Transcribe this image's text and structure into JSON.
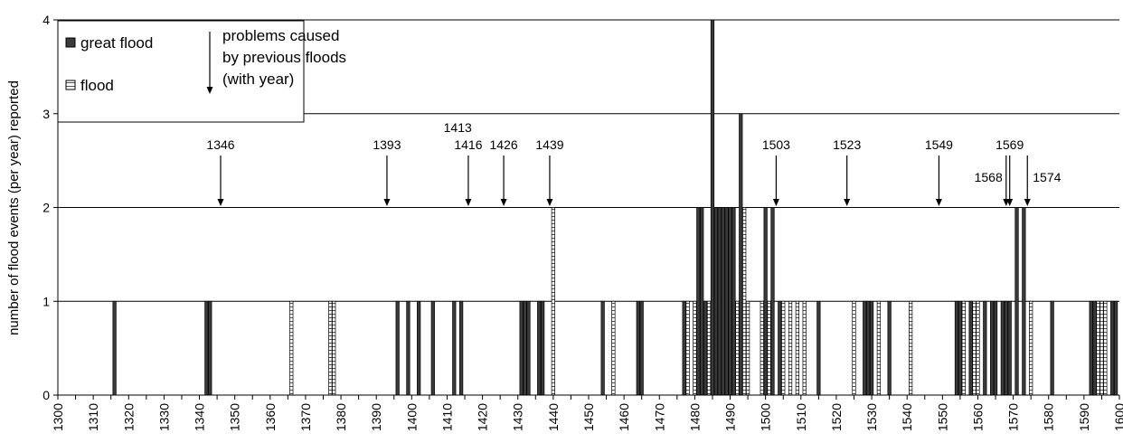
{
  "chart_data": {
    "type": "bar",
    "title": "",
    "xlabel": "",
    "ylabel": "number of flood events (per year) reported",
    "xlim": [
      1300,
      1600
    ],
    "ylim": [
      0,
      4
    ],
    "x_ticks": [
      1300,
      1310,
      1320,
      1330,
      1340,
      1350,
      1360,
      1370,
      1380,
      1390,
      1400,
      1410,
      1420,
      1430,
      1440,
      1450,
      1460,
      1470,
      1480,
      1490,
      1500,
      1510,
      1520,
      1530,
      1540,
      1550,
      1560,
      1570,
      1580,
      1590,
      1600
    ],
    "y_ticks": [
      0,
      1,
      2,
      3,
      4
    ],
    "grid": "horizontal",
    "legend_position": "top-left",
    "colors": {
      "great_flood": "#3a3a3a",
      "flood_fill": "#ffffff",
      "flood_hatch": "#555555"
    },
    "legend": {
      "great_flood": "great flood",
      "flood": "flood",
      "arrow_line1": "problems caused",
      "arrow_line2": "by previous floods",
      "arrow_line3": "(with year)"
    },
    "series": [
      {
        "name": "great flood",
        "points": [
          {
            "x": 1316,
            "y": 1
          },
          {
            "x": 1342,
            "y": 1
          },
          {
            "x": 1343,
            "y": 1
          },
          {
            "x": 1396,
            "y": 1
          },
          {
            "x": 1399,
            "y": 1
          },
          {
            "x": 1402,
            "y": 1
          },
          {
            "x": 1406,
            "y": 1
          },
          {
            "x": 1412,
            "y": 1
          },
          {
            "x": 1414,
            "y": 1
          },
          {
            "x": 1431,
            "y": 1
          },
          {
            "x": 1432,
            "y": 1
          },
          {
            "x": 1433,
            "y": 1
          },
          {
            "x": 1436,
            "y": 1
          },
          {
            "x": 1437,
            "y": 1
          },
          {
            "x": 1454,
            "y": 1
          },
          {
            "x": 1464,
            "y": 1
          },
          {
            "x": 1465,
            "y": 1
          },
          {
            "x": 1477,
            "y": 1
          },
          {
            "x": 1481,
            "y": 2
          },
          {
            "x": 1482,
            "y": 2
          },
          {
            "x": 1483,
            "y": 1
          },
          {
            "x": 1485,
            "y": 4
          },
          {
            "x": 1486,
            "y": 2
          },
          {
            "x": 1487,
            "y": 2
          },
          {
            "x": 1488,
            "y": 2
          },
          {
            "x": 1489,
            "y": 2
          },
          {
            "x": 1490,
            "y": 2
          },
          {
            "x": 1491,
            "y": 2
          },
          {
            "x": 1493,
            "y": 3
          },
          {
            "x": 1500,
            "y": 2
          },
          {
            "x": 1502,
            "y": 2
          },
          {
            "x": 1504,
            "y": 1
          },
          {
            "x": 1515,
            "y": 1
          },
          {
            "x": 1528,
            "y": 1
          },
          {
            "x": 1529,
            "y": 1
          },
          {
            "x": 1530,
            "y": 1
          },
          {
            "x": 1535,
            "y": 1
          },
          {
            "x": 1554,
            "y": 1
          },
          {
            "x": 1555,
            "y": 1
          },
          {
            "x": 1558,
            "y": 1
          },
          {
            "x": 1562,
            "y": 1
          },
          {
            "x": 1564,
            "y": 1
          },
          {
            "x": 1565,
            "y": 1
          },
          {
            "x": 1567,
            "y": 1
          },
          {
            "x": 1568,
            "y": 1
          },
          {
            "x": 1569,
            "y": 1
          },
          {
            "x": 1571,
            "y": 2
          },
          {
            "x": 1573,
            "y": 2
          },
          {
            "x": 1581,
            "y": 1
          },
          {
            "x": 1592,
            "y": 1
          },
          {
            "x": 1593,
            "y": 1
          },
          {
            "x": 1598,
            "y": 1
          },
          {
            "x": 1599,
            "y": 1
          }
        ]
      },
      {
        "name": "flood",
        "points": [
          {
            "x": 1366,
            "y": 1
          },
          {
            "x": 1377,
            "y": 1
          },
          {
            "x": 1378,
            "y": 1
          },
          {
            "x": 1440,
            "y": 2
          },
          {
            "x": 1457,
            "y": 1
          },
          {
            "x": 1478,
            "y": 1
          },
          {
            "x": 1480,
            "y": 1
          },
          {
            "x": 1484,
            "y": 1
          },
          {
            "x": 1492,
            "y": 1
          },
          {
            "x": 1494,
            "y": 2
          },
          {
            "x": 1495,
            "y": 1
          },
          {
            "x": 1499,
            "y": 1
          },
          {
            "x": 1501,
            "y": 1
          },
          {
            "x": 1505,
            "y": 1
          },
          {
            "x": 1507,
            "y": 1
          },
          {
            "x": 1509,
            "y": 1
          },
          {
            "x": 1511,
            "y": 1
          },
          {
            "x": 1525,
            "y": 1
          },
          {
            "x": 1532,
            "y": 1
          },
          {
            "x": 1541,
            "y": 1
          },
          {
            "x": 1556,
            "y": 1
          },
          {
            "x": 1559,
            "y": 1
          },
          {
            "x": 1560,
            "y": 1
          },
          {
            "x": 1575,
            "y": 1
          },
          {
            "x": 1594,
            "y": 1
          },
          {
            "x": 1595,
            "y": 1
          },
          {
            "x": 1596,
            "y": 1
          }
        ]
      }
    ],
    "annotations": [
      {
        "year": "1346",
        "x": 1346,
        "row": 0
      },
      {
        "year": "1393",
        "x": 1393,
        "row": 0
      },
      {
        "year": "1413",
        "x": 1413,
        "row": -1
      },
      {
        "year": "1416",
        "x": 1416,
        "row": 0
      },
      {
        "year": "1426",
        "x": 1426,
        "row": 0
      },
      {
        "year": "1439",
        "x": 1439,
        "row": 0
      },
      {
        "year": "1503",
        "x": 1503,
        "row": 0
      },
      {
        "year": "1523",
        "x": 1523,
        "row": 0
      },
      {
        "year": "1549",
        "x": 1549,
        "row": 0
      },
      {
        "year": "1568",
        "x": 1568,
        "row": 1
      },
      {
        "year": "1569",
        "x": 1569,
        "row": 0
      },
      {
        "year": "1574",
        "x": 1574,
        "row": 1
      }
    ]
  }
}
